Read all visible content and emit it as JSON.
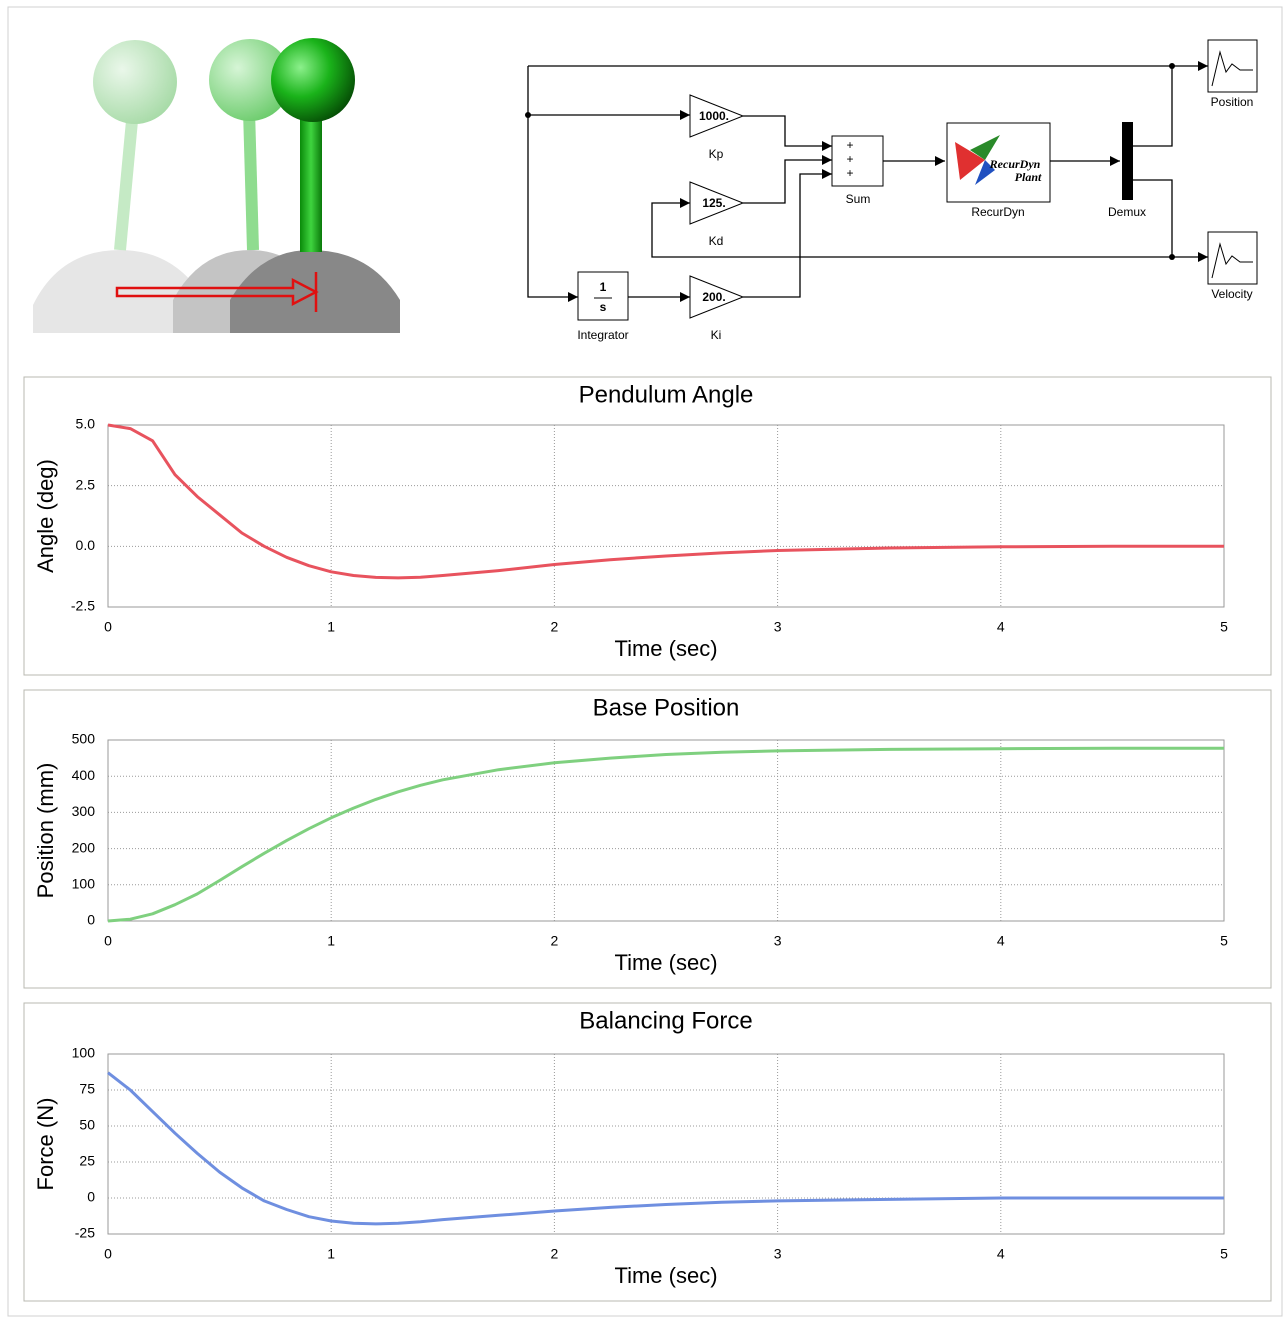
{
  "diagram": {
    "kp_gain": "1000.",
    "kp_label": "Kp",
    "kd_gain": "125.",
    "kd_label": "Kd",
    "ki_gain": "200.",
    "ki_label": "Ki",
    "integrator_num": "1",
    "integrator_den": "s",
    "integrator_label": "Integrator",
    "sum_signs": [
      "+",
      "+",
      "+"
    ],
    "sum_label": "Sum",
    "plant_text": [
      "RecurDyn",
      "Plant"
    ],
    "plant_label": "RecurDyn",
    "demux_label": "Demux",
    "scope_position": "Position",
    "scope_velocity": "Velocity"
  },
  "chart_data": [
    {
      "type": "line",
      "title": "Pendulum Angle",
      "x_label": "Time (sec)",
      "y_label": "Angle (deg)",
      "color": "#e8535e",
      "grid": true,
      "x": [
        0,
        0.1,
        0.2,
        0.3,
        0.4,
        0.5,
        0.6,
        0.7,
        0.8,
        0.9,
        1,
        1.1,
        1.2,
        1.3,
        1.4,
        1.5,
        1.75,
        2,
        2.25,
        2.5,
        2.75,
        3,
        3.5,
        4,
        4.5,
        5
      ],
      "values": [
        5.0,
        4.85,
        4.35,
        2.95,
        2.05,
        1.3,
        0.55,
        0.0,
        -0.45,
        -0.8,
        -1.05,
        -1.2,
        -1.28,
        -1.3,
        -1.27,
        -1.2,
        -1.0,
        -0.75,
        -0.55,
        -0.4,
        -0.27,
        -0.17,
        -0.07,
        -0.02,
        0,
        0
      ],
      "xlim": [
        0,
        5
      ],
      "xticks": [
        0,
        1,
        2,
        3,
        4,
        5
      ],
      "ylim": [
        -2.5,
        5
      ],
      "yticks": [
        {
          "value": 5,
          "label": "5.0"
        },
        2.5,
        {
          "value": 0,
          "label": "0.0"
        },
        -2.5
      ]
    },
    {
      "type": "line",
      "title": "Base Position",
      "x_label": "Time (sec)",
      "y_label": "Position (mm)",
      "color": "#7fd07f",
      "grid": true,
      "x": [
        0,
        0.1,
        0.2,
        0.3,
        0.4,
        0.5,
        0.6,
        0.7,
        0.8,
        0.9,
        1,
        1.1,
        1.2,
        1.3,
        1.4,
        1.5,
        1.75,
        2,
        2.25,
        2.5,
        2.75,
        3,
        3.5,
        4,
        4.5,
        5
      ],
      "values": [
        0,
        5,
        20,
        45,
        75,
        112,
        150,
        187,
        222,
        255,
        285,
        312,
        336,
        357,
        375,
        390,
        418,
        437,
        450,
        460,
        466,
        470,
        474,
        476,
        477,
        477
      ],
      "xlim": [
        0,
        5
      ],
      "xticks": [
        0,
        1,
        2,
        3,
        4,
        5
      ],
      "ylim": [
        0,
        500
      ],
      "yticks": [
        500,
        400,
        300,
        200,
        100,
        0
      ]
    },
    {
      "type": "line",
      "title": "Balancing Force",
      "x_label": "Time (sec)",
      "y_label": "Force (N)",
      "color": "#6f8fe0",
      "grid": true,
      "x": [
        0,
        0.1,
        0.2,
        0.3,
        0.4,
        0.5,
        0.6,
        0.7,
        0.8,
        0.9,
        1,
        1.1,
        1.2,
        1.3,
        1.4,
        1.5,
        1.75,
        2,
        2.25,
        2.5,
        2.75,
        3,
        3.5,
        4,
        4.5,
        5
      ],
      "values": [
        87,
        75,
        60,
        45,
        31,
        18,
        7,
        -2,
        -8,
        -13,
        -16,
        -17.5,
        -18,
        -17.5,
        -16.5,
        -15,
        -12,
        -9,
        -6.5,
        -4.5,
        -3,
        -2,
        -1,
        0,
        0,
        0
      ],
      "xlim": [
        0,
        5
      ],
      "xticks": [
        0,
        1,
        2,
        3,
        4,
        5
      ],
      "ylim": [
        -25,
        100
      ],
      "yticks": [
        100,
        75,
        50,
        25,
        0,
        -25
      ]
    }
  ]
}
